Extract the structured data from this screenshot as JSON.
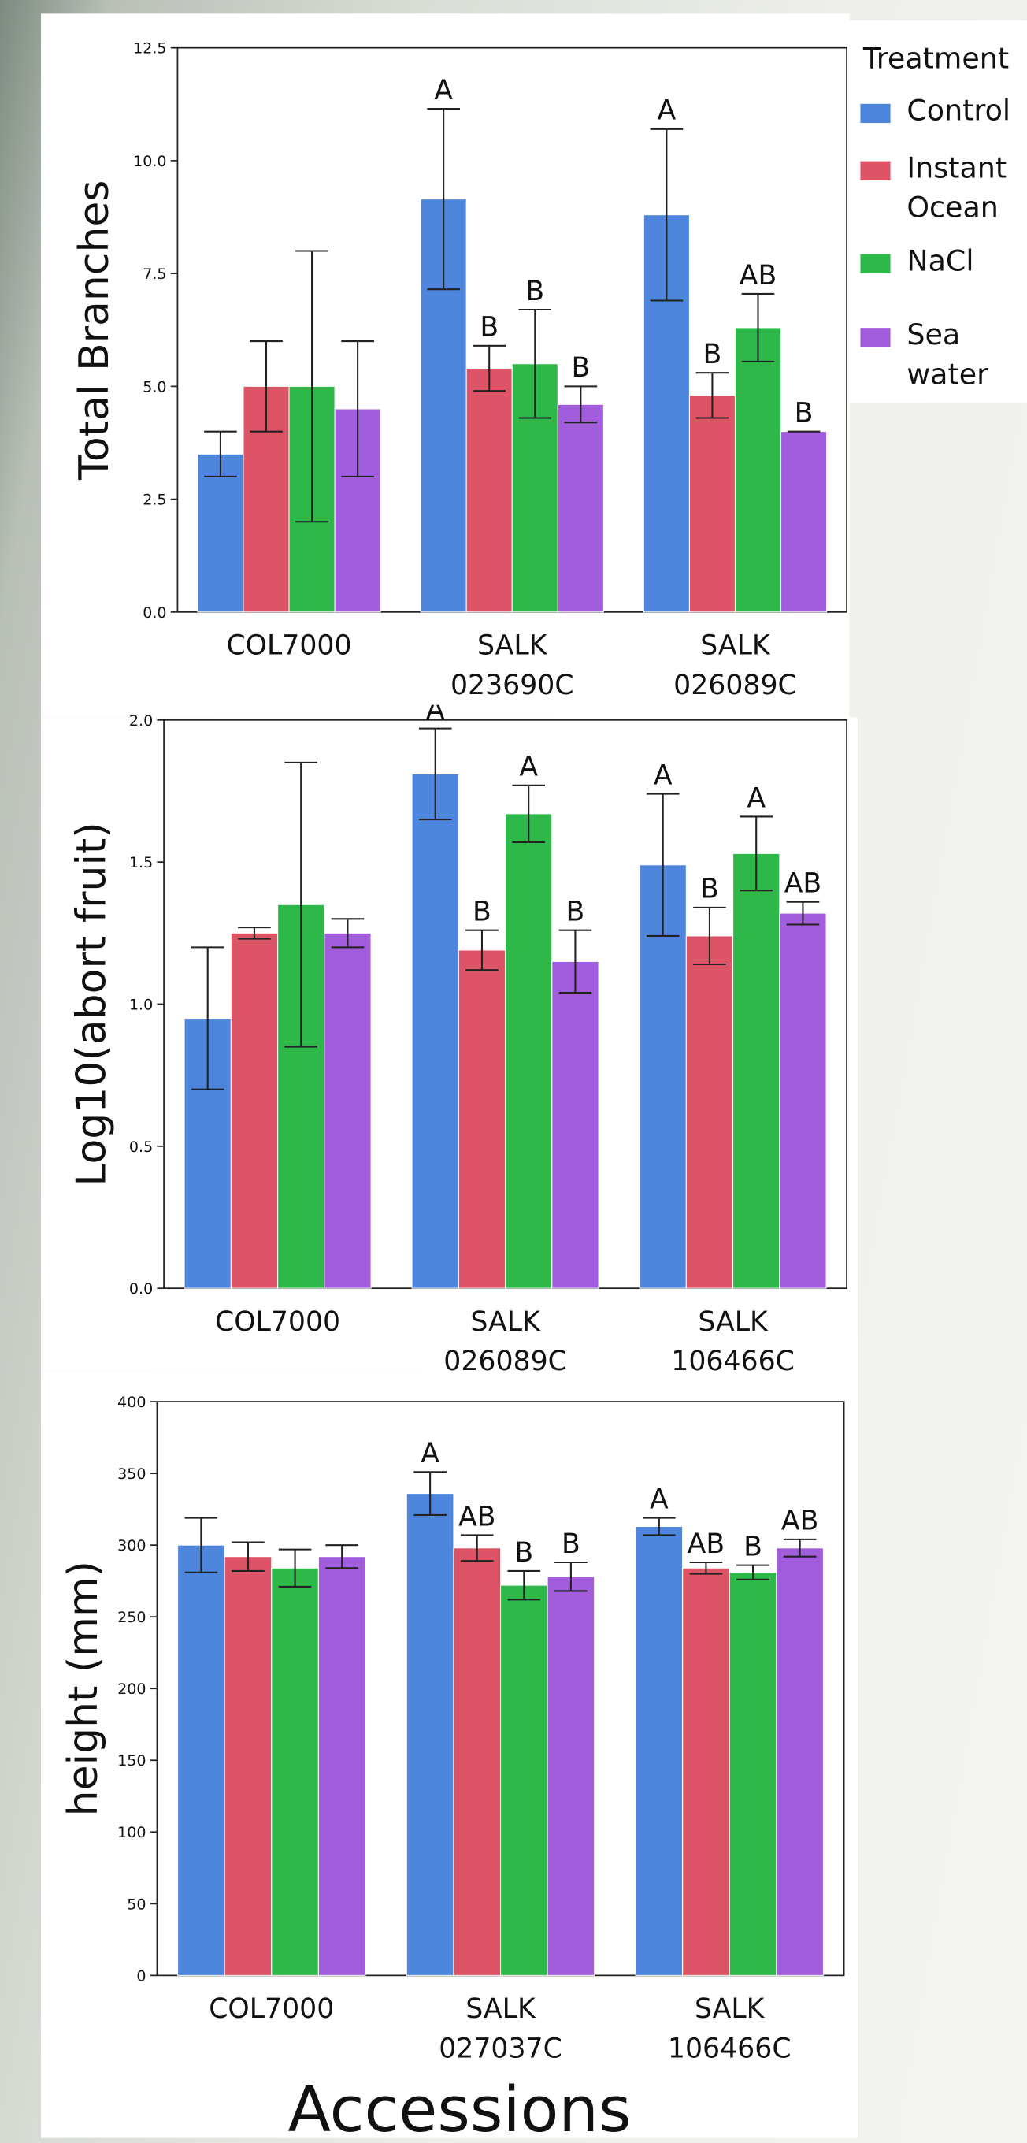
{
  "chart_data": [
    {
      "type": "bar",
      "y_label": "Total Branches",
      "legend_title": "Treatment",
      "categories": [
        "COL7000",
        "SALK 023690C",
        "SALK 026089C"
      ],
      "ylim": [
        0,
        12.5
      ],
      "yticks": [
        {
          "value": 0,
          "label": "0.0"
        },
        {
          "value": 2.5,
          "label": "2.5"
        },
        {
          "value": 5,
          "label": "5.0"
        },
        {
          "value": 7.5,
          "label": "7.5"
        },
        {
          "value": 10,
          "label": "10.0"
        },
        {
          "value": 12.5,
          "label": "12.5"
        }
      ],
      "series": [
        {
          "name": "Control",
          "color": "#4f86dd",
          "values": [
            3.5,
            9.15,
            8.8
          ],
          "errors": [
            0.5,
            2.0,
            1.9
          ],
          "letters": [
            null,
            "A",
            "A"
          ]
        },
        {
          "name": "Instant Ocean",
          "color": "#dc5466",
          "values": [
            5.0,
            5.4,
            4.8
          ],
          "errors": [
            1.0,
            0.5,
            0.5
          ],
          "letters": [
            null,
            "B",
            "B"
          ]
        },
        {
          "name": "NaCl",
          "color": "#2eb84a",
          "values": [
            5.0,
            5.5,
            6.3
          ],
          "errors": [
            3.0,
            1.2,
            0.75
          ],
          "letters": [
            null,
            "B",
            "AB"
          ]
        },
        {
          "name": "Sea water",
          "color": "#a25ddc",
          "values": [
            4.5,
            4.6,
            4.0
          ],
          "errors": [
            1.5,
            0.4,
            0
          ],
          "letters": [
            null,
            "B",
            "B"
          ]
        }
      ]
    },
    {
      "type": "bar",
      "y_label": "Log10(abort fruit)",
      "categories": [
        "COL7000",
        "SALK 026089C",
        "SALK 106466C"
      ],
      "ylim": [
        0,
        2
      ],
      "yticks": [
        {
          "value": 0,
          "label": "0.0"
        },
        {
          "value": 0.5,
          "label": "0.5"
        },
        {
          "value": 1,
          "label": "1.0"
        },
        {
          "value": 1.5,
          "label": "1.5"
        },
        {
          "value": 2,
          "label": "2.0"
        }
      ],
      "series": [
        {
          "color": "#4f86dd",
          "values": [
            0.95,
            1.81,
            1.49
          ],
          "errors": [
            0.25,
            0.16,
            0.25
          ],
          "letters": [
            null,
            "A",
            "A"
          ]
        },
        {
          "color": "#dc5466",
          "values": [
            1.25,
            1.19,
            1.24
          ],
          "errors": [
            0.02,
            0.07,
            0.1
          ],
          "letters": [
            null,
            "B",
            "B"
          ]
        },
        {
          "color": "#2eb84a",
          "values": [
            1.35,
            1.67,
            1.53
          ],
          "errors": [
            0.5,
            0.1,
            0.13
          ],
          "letters": [
            null,
            "A",
            "A"
          ]
        },
        {
          "color": "#a25ddc",
          "values": [
            1.25,
            1.15,
            1.32
          ],
          "errors": [
            0.05,
            0.11,
            0.04
          ],
          "letters": [
            null,
            "B",
            "AB"
          ]
        }
      ]
    },
    {
      "type": "bar",
      "y_label": "height (mm)",
      "x_label": "Accessions",
      "categories": [
        "COL7000",
        "SALK 027037C",
        "SALK 106466C"
      ],
      "ylim": [
        0,
        400
      ],
      "yticks": [
        0,
        50,
        100,
        150,
        200,
        250,
        300,
        350,
        400
      ],
      "series": [
        {
          "color": "#4f86dd",
          "values": [
            300,
            336,
            313
          ],
          "errors": [
            19,
            15,
            6
          ],
          "letters": [
            null,
            "A",
            "A"
          ]
        },
        {
          "color": "#dc5466",
          "values": [
            292,
            298,
            284
          ],
          "errors": [
            10,
            9,
            4
          ],
          "letters": [
            null,
            "AB",
            "AB"
          ]
        },
        {
          "color": "#2eb84a",
          "values": [
            284,
            272,
            281
          ],
          "errors": [
            13,
            10,
            5
          ],
          "letters": [
            null,
            "B",
            "B"
          ]
        },
        {
          "color": "#a25ddc",
          "values": [
            292,
            278,
            298
          ],
          "errors": [
            8,
            10,
            6
          ],
          "letters": [
            null,
            "B",
            "AB"
          ]
        }
      ]
    }
  ]
}
